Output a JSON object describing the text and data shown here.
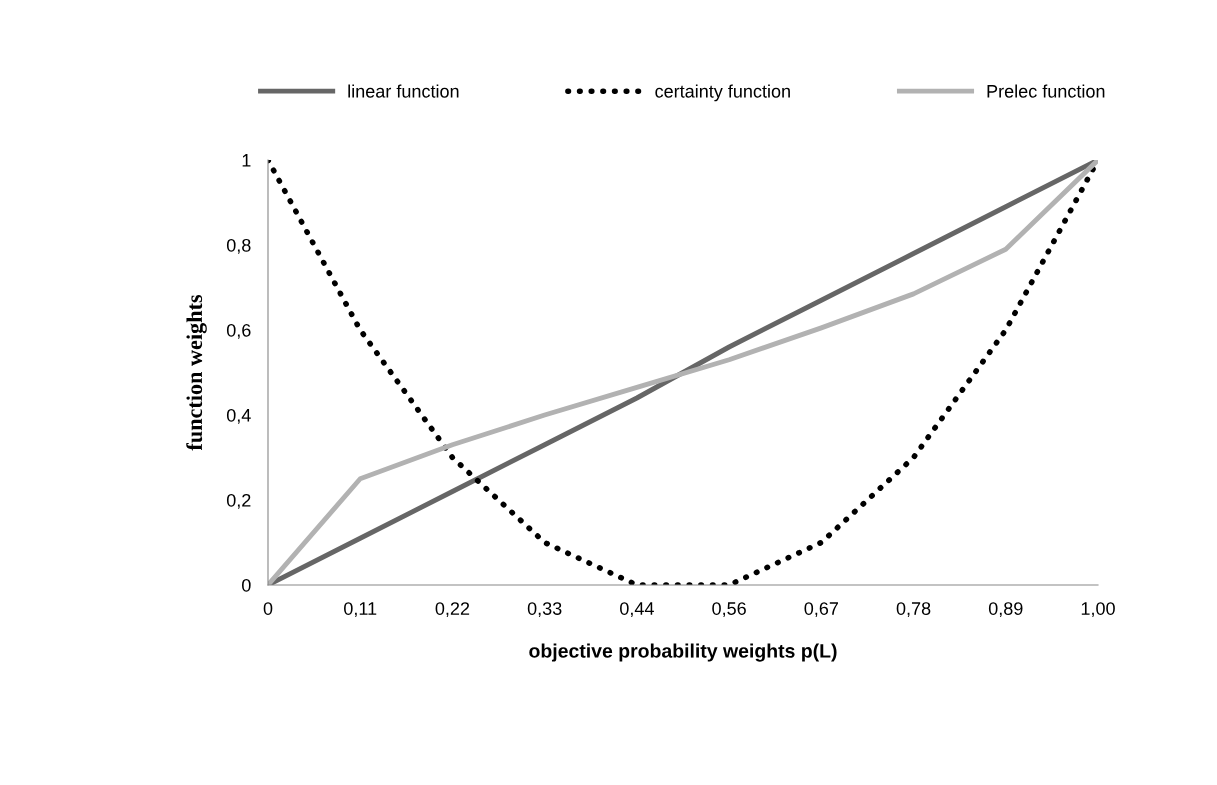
{
  "chart_data": {
    "type": "line",
    "xlabel": "objective probability weights p(L)",
    "ylabel": "function weights",
    "categories": [
      "0",
      "0,11",
      "0,22",
      "0,33",
      "0,44",
      "0,56",
      "0,67",
      "0,78",
      "0,89",
      "1,00"
    ],
    "series": [
      {
        "name": "linear function",
        "color": "#666666",
        "line_style": "solid",
        "values": [
          0,
          0.11,
          0.22,
          0.33,
          0.44,
          0.56,
          0.67,
          0.78,
          0.89,
          1
        ]
      },
      {
        "name": "certainty function",
        "color": "#000000",
        "line_style": "dotted",
        "values": [
          1,
          0.6,
          0.3,
          0.1,
          0,
          0,
          0.1,
          0.3,
          0.6,
          1
        ]
      },
      {
        "name": "Prelec function",
        "color": "#b2b2b2",
        "line_style": "solid",
        "values": [
          0,
          0.25,
          0.33,
          0.4,
          0.465,
          0.53,
          0.605,
          0.685,
          0.79,
          1
        ]
      }
    ],
    "ylim": [
      0,
      1
    ],
    "yticks": [
      0,
      {
        "value": 0.2,
        "label": "0,2"
      },
      {
        "value": 0.4,
        "label": "0,4"
      },
      {
        "value": 0.6,
        "label": "0,6"
      },
      {
        "value": 0.8,
        "label": "0,8"
      },
      1
    ],
    "grid": false,
    "legend": "top",
    "marker": "none"
  }
}
